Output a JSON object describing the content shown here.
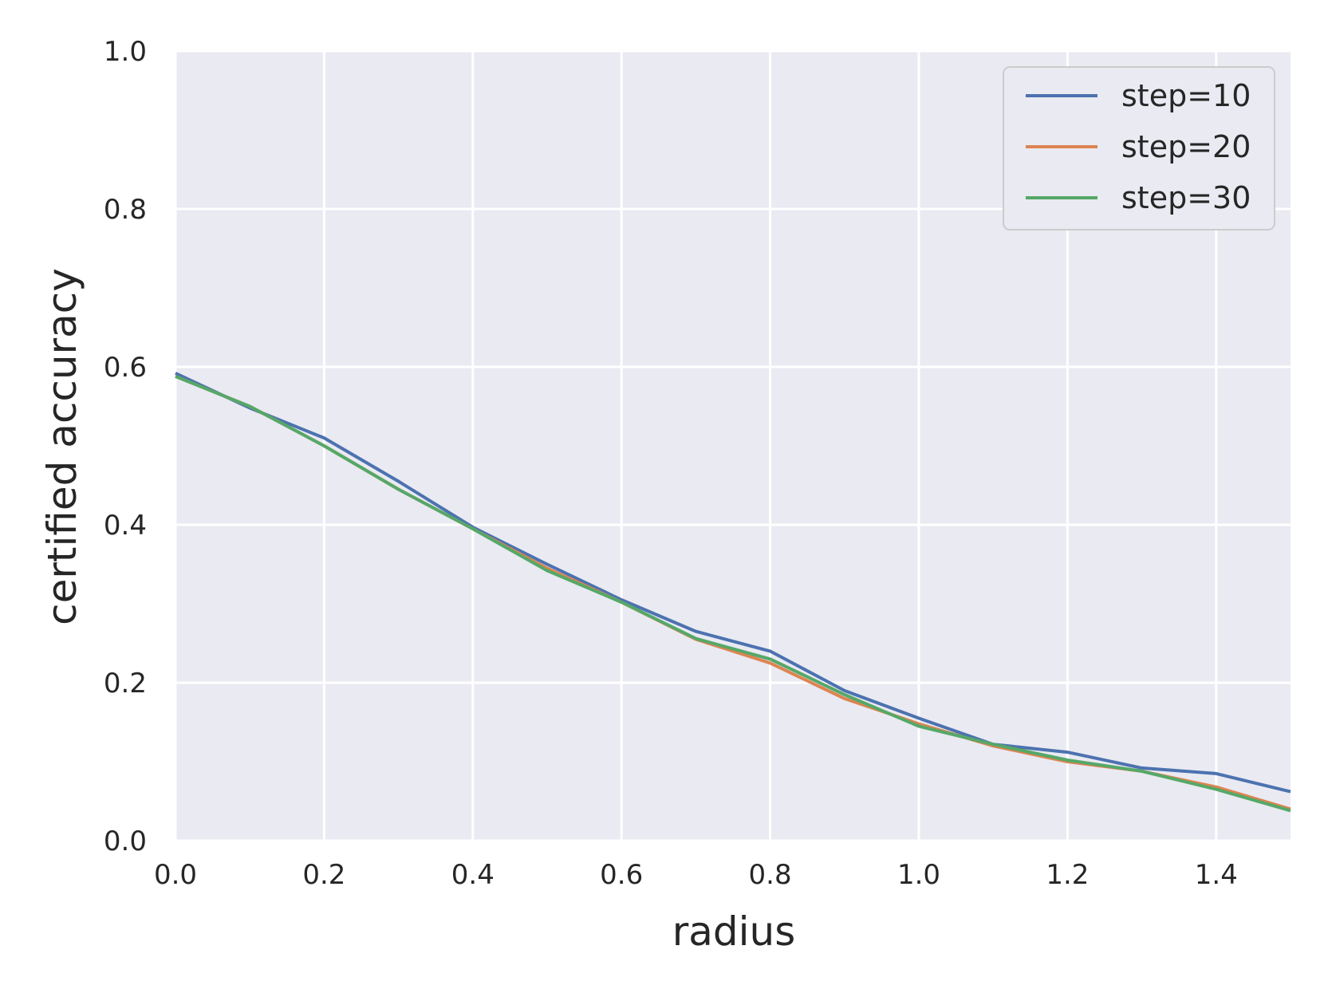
{
  "chart_data": {
    "type": "line",
    "title": "",
    "xlabel": "radius",
    "ylabel": "certified accuracy",
    "xlim": [
      0,
      1.5
    ],
    "ylim": [
      0,
      1
    ],
    "xticks": [
      "0.0",
      "0.2",
      "0.4",
      "0.6",
      "0.8",
      "1.0",
      "1.2",
      "1.4"
    ],
    "yticks": [
      "0.0",
      "0.2",
      "0.4",
      "0.6",
      "0.8",
      "1.0"
    ],
    "grid": true,
    "legend_position": "top-right",
    "background": "#eaeaf2",
    "x": [
      0.0,
      0.1,
      0.2,
      0.3,
      0.4,
      0.5,
      0.6,
      0.7,
      0.8,
      0.9,
      1.0,
      1.1,
      1.2,
      1.3,
      1.4,
      1.5
    ],
    "series": [
      {
        "name": "step=10",
        "color": "#4c72b0",
        "values": [
          0.592,
          0.548,
          0.51,
          0.455,
          0.397,
          0.35,
          0.305,
          0.265,
          0.24,
          0.19,
          0.155,
          0.122,
          0.112,
          0.092,
          0.085,
          0.062
        ]
      },
      {
        "name": "step=20",
        "color": "#dd8452",
        "values": [
          0.588,
          0.55,
          0.5,
          0.445,
          0.395,
          0.345,
          0.302,
          0.255,
          0.225,
          0.18,
          0.148,
          0.12,
          0.1,
          0.088,
          0.068,
          0.04
        ]
      },
      {
        "name": "step=30",
        "color": "#55a868",
        "values": [
          0.588,
          0.55,
          0.5,
          0.445,
          0.395,
          0.342,
          0.302,
          0.256,
          0.23,
          0.185,
          0.145,
          0.122,
          0.102,
          0.088,
          0.065,
          0.038
        ]
      }
    ]
  }
}
